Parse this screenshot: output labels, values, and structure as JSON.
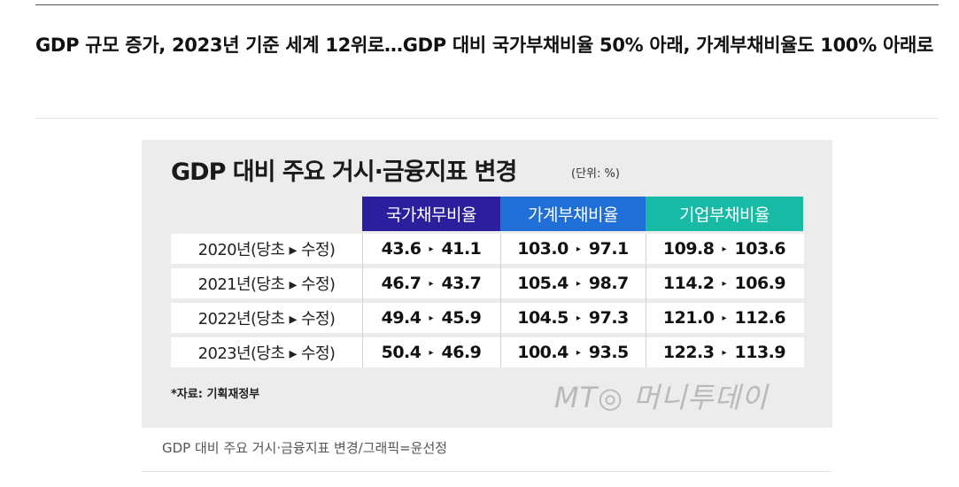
{
  "article": {
    "headline": "GDP 규모 증가, 2023년 기준 세계 12위로…GDP 대비 국가부채비율 50% 아래, 가계부채비율도 100% 아래로",
    "caption": "GDP 대비 주요 거시·금융지표 변경/그래픽=윤선정"
  },
  "figure": {
    "watermark": "MT◎ 머니투데이",
    "arrow_glyph": "▸"
  },
  "chart_data": {
    "type": "table",
    "title": "GDP 대비 주요 거시·금융지표 변경",
    "unit": "(단위: %)",
    "source": "*자료: 기획재정부",
    "columns": [
      "국가채무비율",
      "가계부채비율",
      "기업부채비율"
    ],
    "column_colors": [
      "#2b1f9e",
      "#1f6fd6",
      "#17bba5"
    ],
    "rows": [
      {
        "label": "2020년(당초 ▸ 수정)",
        "values": [
          {
            "before": "43.6",
            "after": "41.1"
          },
          {
            "before": "103.0",
            "after": "97.1"
          },
          {
            "before": "109.8",
            "after": "103.6"
          }
        ]
      },
      {
        "label": "2021년(당초 ▸ 수정)",
        "values": [
          {
            "before": "46.7",
            "after": "43.7"
          },
          {
            "before": "105.4",
            "after": "98.7"
          },
          {
            "before": "114.2",
            "after": "106.9"
          }
        ]
      },
      {
        "label": "2022년(당초 ▸ 수정)",
        "values": [
          {
            "before": "49.4",
            "after": "45.9"
          },
          {
            "before": "104.5",
            "after": "97.3"
          },
          {
            "before": "121.0",
            "after": "112.6"
          }
        ]
      },
      {
        "label": "2023년(당초 ▸ 수정)",
        "values": [
          {
            "before": "50.4",
            "after": "46.9"
          },
          {
            "before": "100.4",
            "after": "93.5"
          },
          {
            "before": "122.3",
            "after": "113.9"
          }
        ]
      }
    ]
  }
}
